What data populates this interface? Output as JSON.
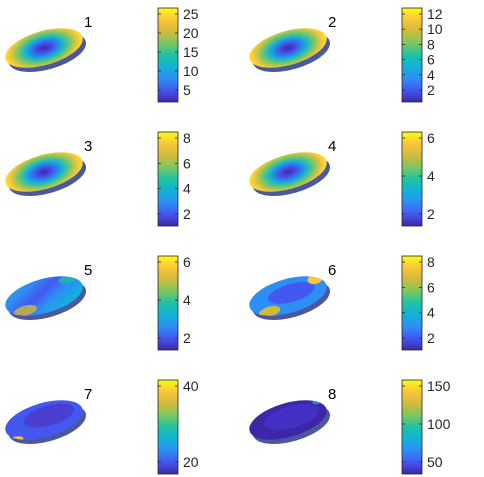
{
  "colormap": [
    "#3e26a8",
    "#4358f0",
    "#2d8ff5",
    "#12b1d8",
    "#1ec3a3",
    "#7bc860",
    "#d0ba3b",
    "#fac53a",
    "#f9fb15"
  ],
  "panels": [
    {
      "label": "1",
      "ticks": [
        "25",
        "20",
        "15",
        "10",
        "5"
      ],
      "pattern": "bands"
    },
    {
      "label": "2",
      "ticks": [
        "12",
        "10",
        "8",
        "6",
        "4",
        "2"
      ],
      "pattern": "bands"
    },
    {
      "label": "3",
      "ticks": [
        "8",
        "6",
        "4",
        "2"
      ],
      "pattern": "bands"
    },
    {
      "label": "4",
      "ticks": [
        "6",
        "4",
        "2"
      ],
      "pattern": "bands"
    },
    {
      "label": "5",
      "ticks": [
        "6",
        "4",
        "2"
      ],
      "pattern": "diagonal"
    },
    {
      "label": "6",
      "ticks": [
        "8",
        "6",
        "4",
        "2"
      ],
      "pattern": "spots"
    },
    {
      "label": "7",
      "ticks": [
        "40",
        "20"
      ],
      "pattern": "edge"
    },
    {
      "label": "8",
      "ticks": [
        "150",
        "100",
        "50"
      ],
      "pattern": "dark"
    }
  ]
}
